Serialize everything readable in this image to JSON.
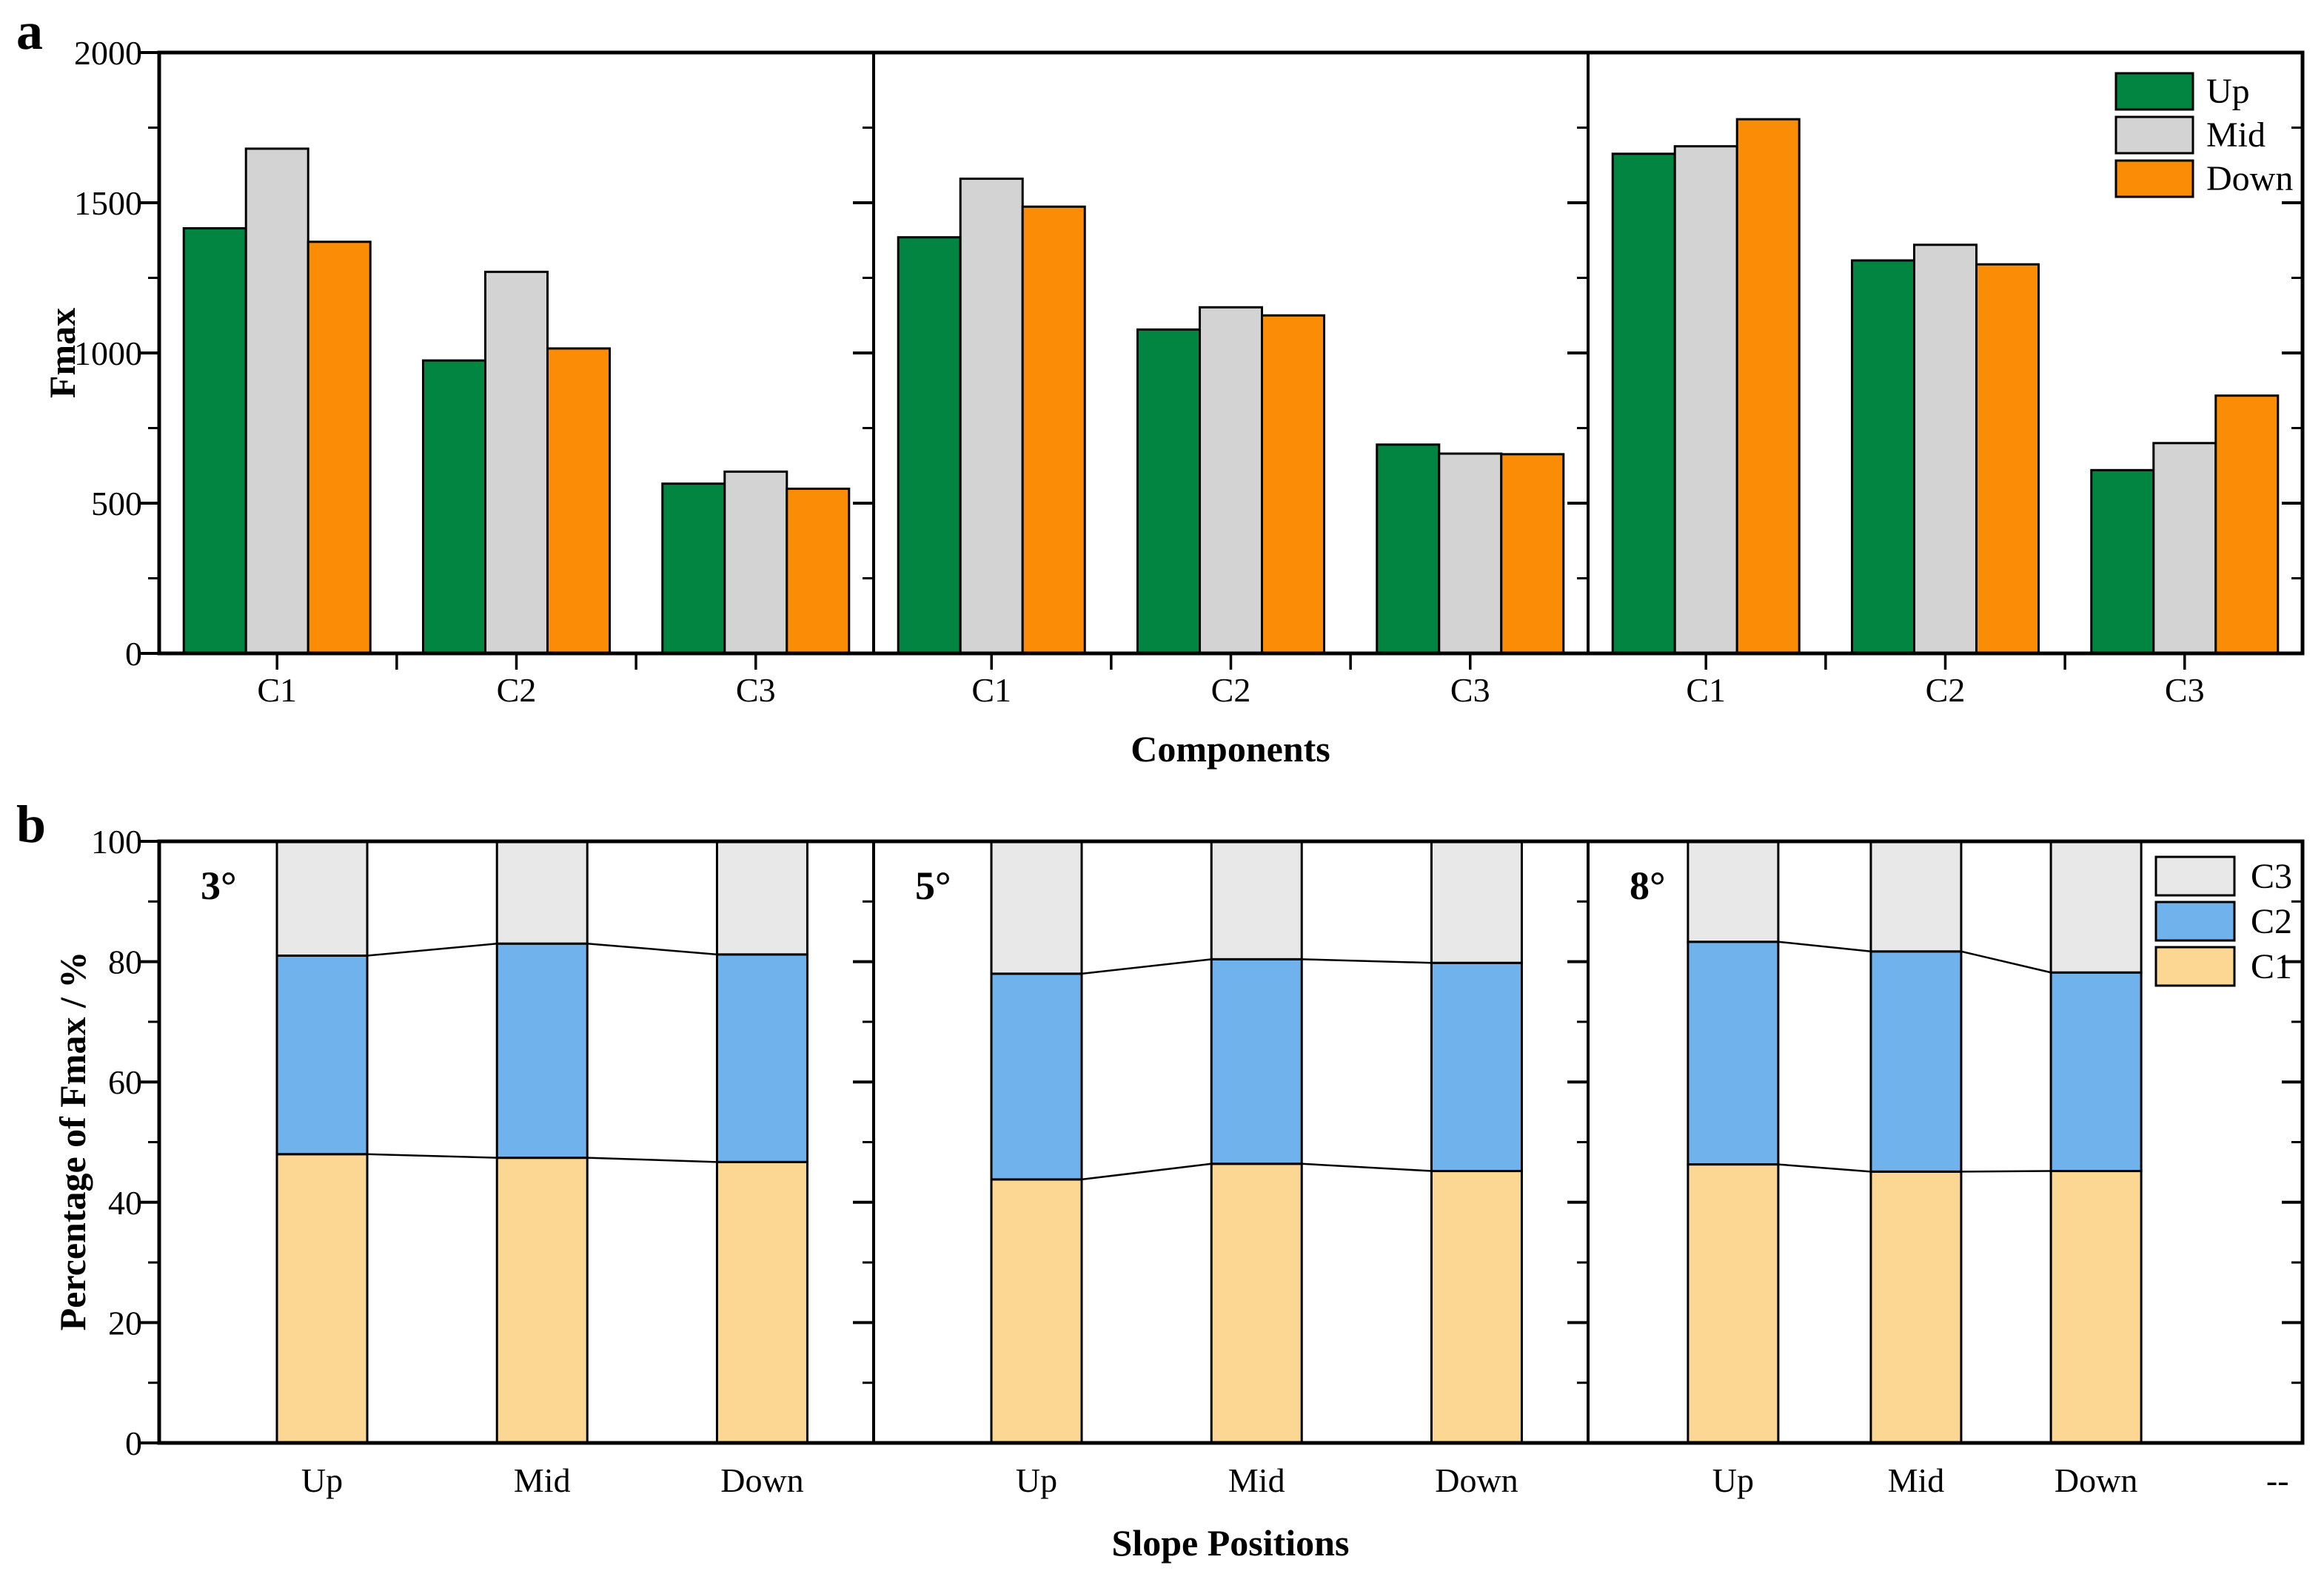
{
  "figure": {
    "panel_a_letter": "a",
    "panel_b_letter": "b",
    "background_color": "#ffffff",
    "axis_color": "#000000"
  },
  "chart_data": [
    {
      "id": "panel_a",
      "type": "bar",
      "ylabel": "Fmax",
      "xlabel": "Components",
      "ylim": [
        0,
        2000
      ],
      "yticks": [
        0,
        500,
        1000,
        1500,
        2000
      ],
      "yticks_minor": [
        250,
        750,
        1250,
        1750
      ],
      "categories": [
        "C1",
        "C2",
        "C3"
      ],
      "legend": [
        "Up",
        "Mid",
        "Down"
      ],
      "legend_position": "top-right",
      "grid": false,
      "series_colors": {
        "Up": "#028540",
        "Mid": "#d3d3d3",
        "Down": "#fb8c05"
      },
      "bar_outline": "#000000",
      "panels": [
        {
          "series": [
            {
              "name": "Up",
              "values": [
                1415,
                975,
                565
              ]
            },
            {
              "name": "Mid",
              "values": [
                1680,
                1270,
                605
              ]
            },
            {
              "name": "Down",
              "values": [
                1370,
                1015,
                548
              ]
            }
          ]
        },
        {
          "series": [
            {
              "name": "Up",
              "values": [
                1385,
                1078,
                695
              ]
            },
            {
              "name": "Mid",
              "values": [
                1580,
                1152,
                665
              ]
            },
            {
              "name": "Down",
              "values": [
                1487,
                1125,
                663
              ]
            }
          ]
        },
        {
          "series": [
            {
              "name": "Up",
              "values": [
                1663,
                1308,
                610
              ]
            },
            {
              "name": "Mid",
              "values": [
                1688,
                1360,
                700
              ]
            },
            {
              "name": "Down",
              "values": [
                1778,
                1295,
                858
              ]
            }
          ]
        }
      ]
    },
    {
      "id": "panel_b",
      "type": "stacked-bar",
      "ylabel": "Percentage of Fmax / %",
      "xlabel": "Slope Positions",
      "ylim": [
        0,
        100
      ],
      "yticks": [
        0,
        20,
        40,
        60,
        80,
        100
      ],
      "yticks_minor": [
        10,
        30,
        50,
        70,
        90
      ],
      "categories": [
        "Up",
        "Mid",
        "Down"
      ],
      "extra_tick_label": "--",
      "legend": [
        "C3",
        "C2",
        "C1"
      ],
      "legend_position": "top-right",
      "grid": false,
      "stack_order": [
        "C1",
        "C2",
        "C3"
      ],
      "series_colors": {
        "C1": "#fcd693",
        "C2": "#6fb2ec",
        "C3": "#e8e8e8"
      },
      "bar_outline": "#000000",
      "connector_lines": true,
      "panels": [
        {
          "label": "3°",
          "stacks": {
            "Up": [
              48.0,
              33.0,
              19.0
            ],
            "Mid": [
              47.4,
              35.6,
              17.0
            ],
            "Down": [
              46.7,
              34.5,
              18.8
            ]
          }
        },
        {
          "label": "5°",
          "stacks": {
            "Up": [
              43.8,
              34.2,
              22.0
            ],
            "Mid": [
              46.4,
              34.0,
              19.6
            ],
            "Down": [
              45.2,
              34.6,
              20.2
            ]
          }
        },
        {
          "label": "8°",
          "stacks": {
            "Up": [
              46.3,
              37.0,
              16.7
            ],
            "Mid": [
              45.1,
              36.6,
              18.3
            ],
            "Down": [
              45.2,
              33.0,
              21.8
            ]
          }
        }
      ]
    }
  ]
}
